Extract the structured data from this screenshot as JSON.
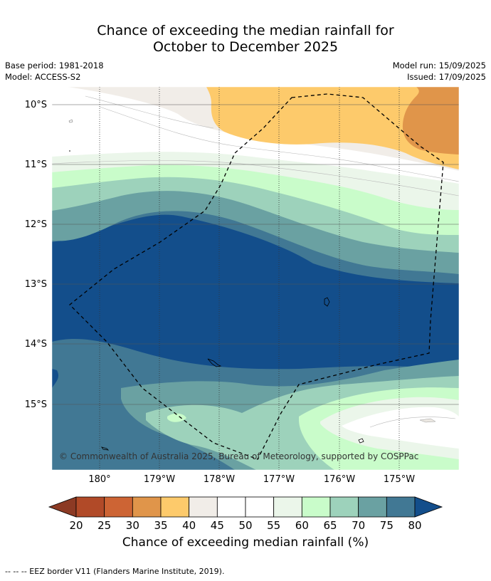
{
  "header": {
    "title_line1": "Chance of exceeding the median rainfall for",
    "title_line2": "October to December 2025",
    "base_period": "Base period: 1981-2018",
    "model": "Model: ACCESS-S2",
    "model_run": "Model run: 15/09/2025",
    "issued": "Issued: 17/09/2025"
  },
  "map": {
    "lat_labels": [
      "10°S",
      "11°S",
      "12°S",
      "13°S",
      "14°S",
      "15°S"
    ],
    "lon_labels": [
      "180°",
      "179°W",
      "178°W",
      "177°W",
      "176°W",
      "175°W"
    ],
    "copyright": "© Commonwealth of Australia 2025, Bureau of Meteorology, supported by COSPPac"
  },
  "colorbar": {
    "ticks": [
      "20",
      "25",
      "30",
      "35",
      "40",
      "45",
      "50",
      "55",
      "60",
      "65",
      "70",
      "75",
      "80"
    ],
    "label": "Chance of exceeding median rainfall (%)",
    "colors": {
      "below_20": "#8c3a24",
      "20_25": "#b14a28",
      "25_30": "#cd6434",
      "30_35": "#e0954a",
      "35_40": "#fdca6b",
      "40_45": "#f1ede8",
      "45_50": "#ffffff",
      "50_55": "#ffffff",
      "55_60": "#ebf6ea",
      "60_65": "#c9fcca",
      "65_70": "#9dd2bb",
      "70_75": "#6aa1a2",
      "75_80": "#417894",
      "above_80": "#134e8b"
    }
  },
  "footer": {
    "legend_text": "--  --  -- EEZ border V11 (Flanders Marine Institute, 2019)."
  }
}
